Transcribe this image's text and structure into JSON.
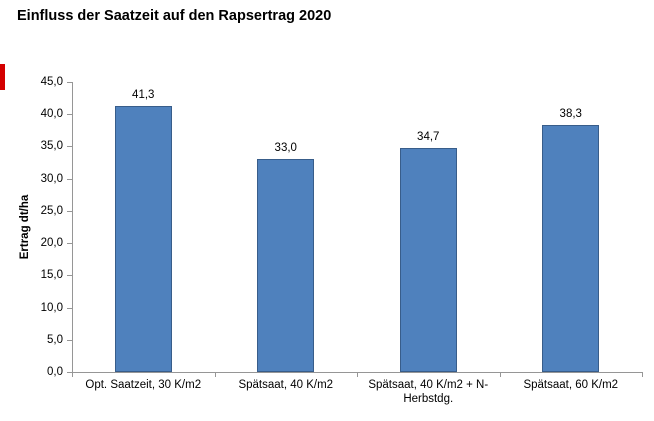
{
  "title": "Einfluss der Saatzeit auf den Rapsertrag 2020",
  "chart_data": {
    "type": "bar",
    "title": "Einfluss der Saatzeit auf den Rapsertrag 2020",
    "categories": [
      "Opt. Saatzeit, 30 K/m2",
      "Spätsaat, 40 K/m2",
      "Spätsaat, 40 K/m2 + N-Herbstdg.",
      "Spätsaat, 60 K/m2"
    ],
    "values": [
      41.3,
      33.0,
      34.7,
      38.3
    ],
    "value_labels": [
      "41,3",
      "33,0",
      "34,7",
      "38,3"
    ],
    "xlabel": "",
    "ylabel": "Ertrag dt/ha",
    "ylim": [
      0,
      45
    ],
    "ytick_step": 5,
    "ytick_labels": [
      "0,0",
      "5,0",
      "10,0",
      "15,0",
      "20,0",
      "25,0",
      "30,0",
      "35,0",
      "40,0",
      "45,0"
    ],
    "grid": false,
    "legend": "none",
    "colors": {
      "bar_fill": "#4F81BD",
      "bar_border": "#385D8A",
      "axis": "#969696",
      "text": "#000000"
    }
  },
  "artifact": {
    "red_mark_color": "#D40000"
  }
}
